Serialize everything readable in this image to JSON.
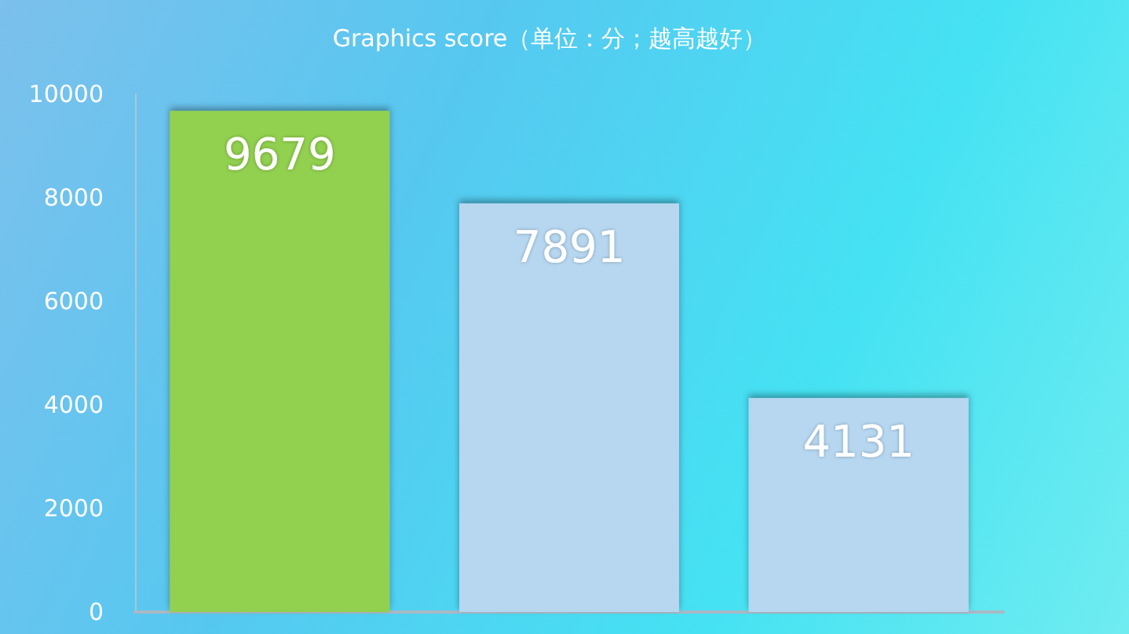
{
  "chart_data": {
    "type": "bar",
    "title": "Graphics score（单位：分；越高越好）",
    "categories": [
      null,
      null,
      null
    ],
    "values": [
      9679,
      7891,
      4131
    ],
    "colors": [
      "#92d050",
      "#b7d7f1",
      "#b7d7f1"
    ],
    "ylim": [
      0,
      10000
    ],
    "yticks": [
      0,
      2000,
      4000,
      6000,
      8000,
      10000
    ],
    "data_labels": true,
    "grid": false
  }
}
